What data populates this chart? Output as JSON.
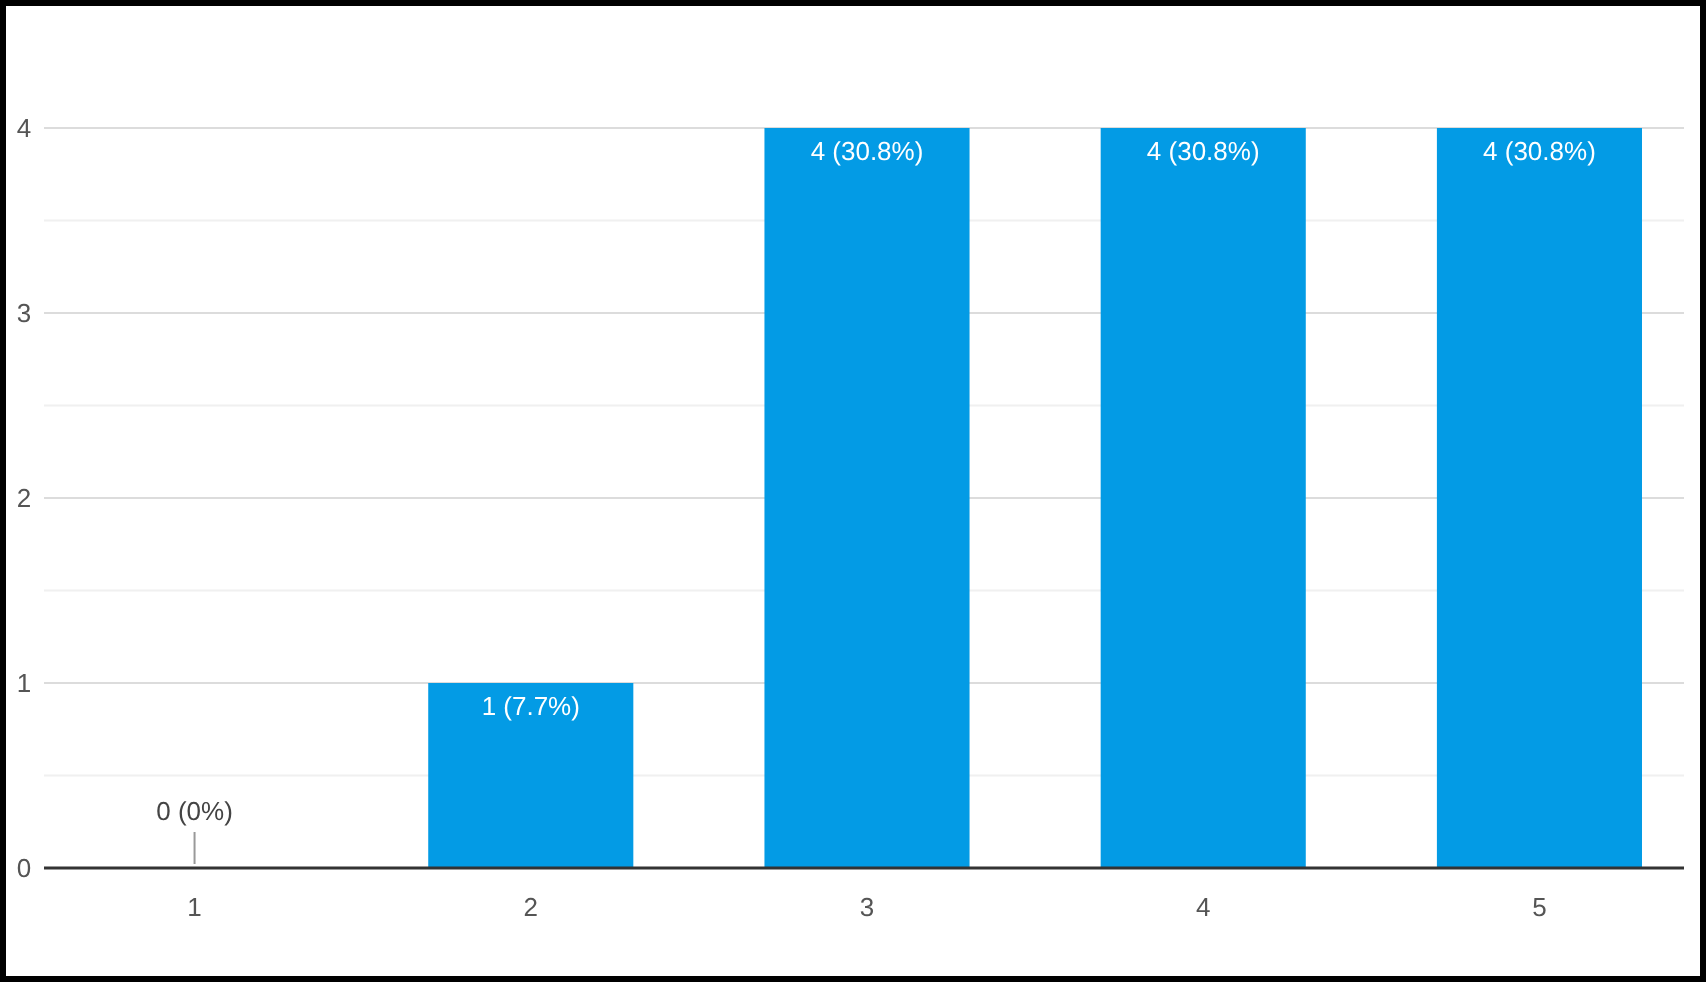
{
  "chart_data": {
    "type": "bar",
    "categories": [
      "1",
      "2",
      "3",
      "4",
      "5"
    ],
    "values": [
      0,
      1,
      4,
      4,
      4
    ],
    "color": "#039be5",
    "value_labels": [
      "0 (0%)",
      "1 (7.7%)",
      "4 (30.8%)",
      "4 (30.8%)",
      "4 (30.8%)"
    ],
    "ylim": [
      0,
      4
    ],
    "yticks": [
      0,
      {
        "value": 0.5,
        "label": null
      },
      1,
      {
        "value": 1.5,
        "label": null
      },
      2,
      {
        "value": 2.5,
        "label": null
      },
      3,
      {
        "value": 3.5,
        "label": null
      },
      4
    ],
    "grid": "y"
  }
}
